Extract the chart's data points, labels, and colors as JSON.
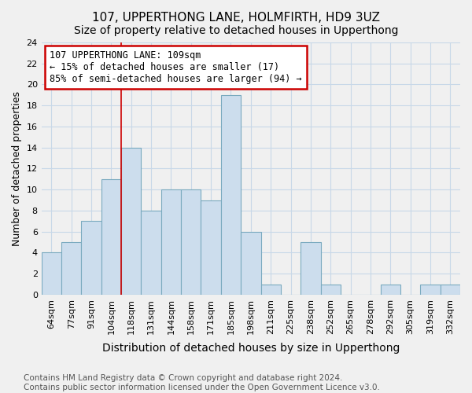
{
  "title": "107, UPPERTHONG LANE, HOLMFIRTH, HD9 3UZ",
  "subtitle": "Size of property relative to detached houses in Upperthong",
  "xlabel": "Distribution of detached houses by size in Upperthong",
  "ylabel": "Number of detached properties",
  "categories": [
    "64sqm",
    "77sqm",
    "91sqm",
    "104sqm",
    "118sqm",
    "131sqm",
    "144sqm",
    "158sqm",
    "171sqm",
    "185sqm",
    "198sqm",
    "211sqm",
    "225sqm",
    "238sqm",
    "252sqm",
    "265sqm",
    "278sqm",
    "292sqm",
    "305sqm",
    "319sqm",
    "332sqm"
  ],
  "values": [
    4,
    5,
    7,
    11,
    14,
    8,
    10,
    10,
    9,
    19,
    6,
    1,
    0,
    5,
    1,
    0,
    0,
    1,
    0,
    1,
    1
  ],
  "bar_color": "#ccdded",
  "bar_edge_color": "#7aaabf",
  "annotation_line1": "107 UPPERTHONG LANE: 109sqm",
  "annotation_line2": "← 15% of detached houses are smaller (17)",
  "annotation_line3": "85% of semi-detached houses are larger (94) →",
  "annotation_box_color": "#ffffff",
  "annotation_box_edge_color": "#cc0000",
  "vline_index": 3.5,
  "ylim": [
    0,
    24
  ],
  "yticks": [
    0,
    2,
    4,
    6,
    8,
    10,
    12,
    14,
    16,
    18,
    20,
    22,
    24
  ],
  "footer_line1": "Contains HM Land Registry data © Crown copyright and database right 2024.",
  "footer_line2": "Contains public sector information licensed under the Open Government Licence v3.0.",
  "title_fontsize": 11,
  "subtitle_fontsize": 10,
  "xlabel_fontsize": 10,
  "ylabel_fontsize": 9,
  "tick_fontsize": 8,
  "annotation_fontsize": 8.5,
  "footer_fontsize": 7.5,
  "background_color": "#f0f0f0",
  "plot_background_color": "#f0f0f0",
  "grid_color": "#c8d8e8"
}
